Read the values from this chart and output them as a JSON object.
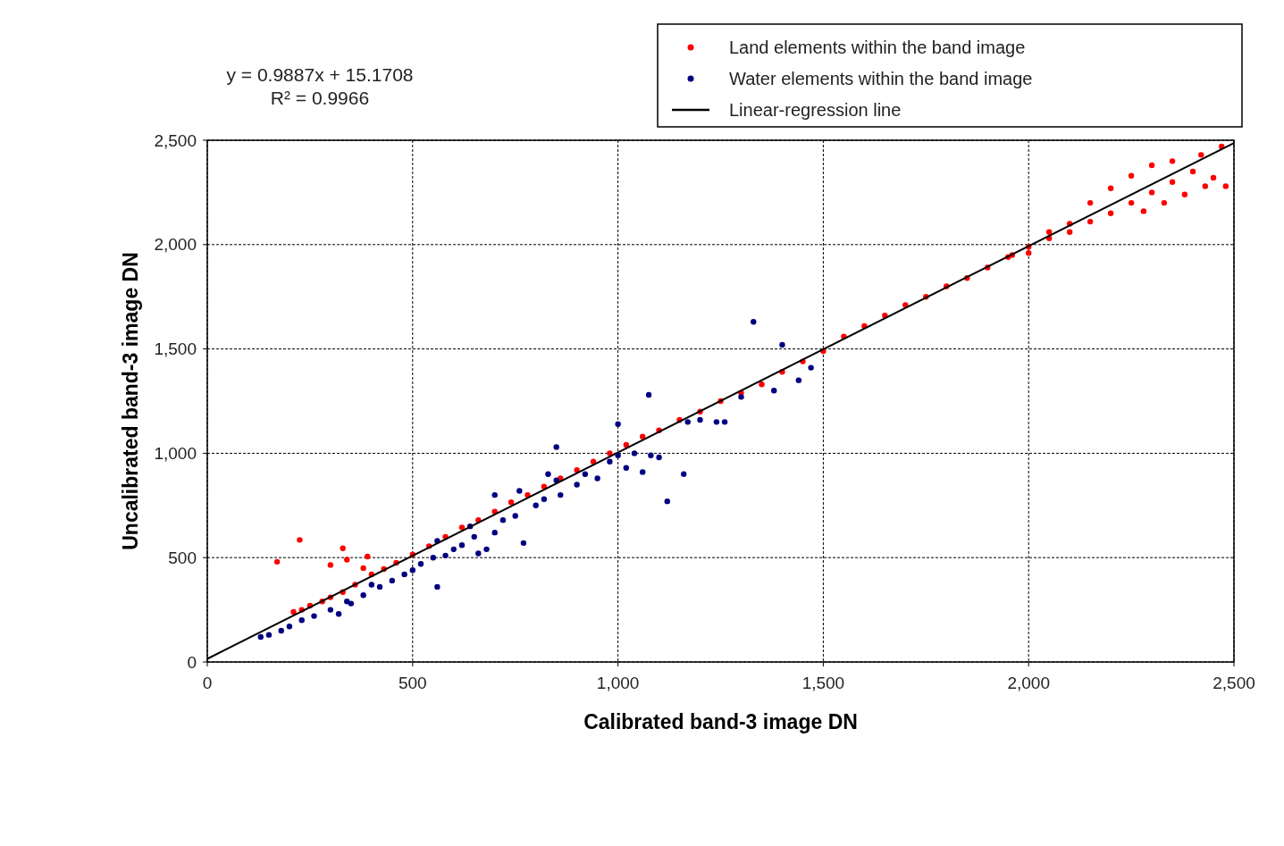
{
  "chart_data": {
    "type": "scatter",
    "xlabel": "Calibrated band-3 image DN",
    "ylabel": "Uncalibrated band-3 image DN",
    "xlim": [
      0,
      2500
    ],
    "ylim": [
      0,
      2500
    ],
    "xticks": [
      0,
      {
        "value": 500,
        "label": "500"
      },
      {
        "value": 1000,
        "label": "1,000"
      },
      {
        "value": 1500,
        "label": "1,500"
      },
      {
        "value": 2000,
        "label": "2,000"
      },
      {
        "value": 2500,
        "label": "2,500"
      }
    ],
    "yticks": [
      0,
      {
        "value": 500,
        "label": "500"
      },
      {
        "value": 1000,
        "label": "1,000"
      },
      {
        "value": 1500,
        "label": "1,500"
      },
      {
        "value": 2000,
        "label": "2,000"
      },
      {
        "value": 2500,
        "label": "2,500"
      }
    ],
    "grid": true,
    "legend": "top right",
    "marker": "circle",
    "annotations": [
      "y = 0.9887x + 15.1708",
      "R² = 0.9966"
    ],
    "series": [
      {
        "name": "Land elements within the band image",
        "color": "#ff0000",
        "x": [
          170,
          225,
          300,
          330,
          340,
          390,
          380,
          210,
          230,
          250,
          280,
          300,
          330,
          360,
          400,
          430,
          460,
          500,
          540,
          580,
          620,
          660,
          700,
          740,
          780,
          820,
          860,
          900,
          940,
          980,
          1020,
          1060,
          1100,
          1150,
          1200,
          1250,
          1300,
          1350,
          1400,
          1450,
          1500,
          1550,
          1600,
          1650,
          1700,
          1750,
          1800,
          1850,
          1900,
          1950,
          2000,
          2050,
          2100,
          2150,
          2200,
          2250,
          2300,
          2350,
          2400,
          2450,
          2480,
          2430,
          2380,
          2330,
          2280,
          2250,
          2300,
          2350,
          2420,
          2470,
          2200,
          2150,
          2100,
          2050,
          2000,
          1960
        ],
        "values": [
          480,
          585,
          465,
          545,
          490,
          505,
          450,
          240,
          250,
          270,
          290,
          310,
          335,
          370,
          420,
          445,
          475,
          515,
          555,
          600,
          645,
          680,
          720,
          765,
          800,
          840,
          880,
          920,
          960,
          1000,
          1040,
          1080,
          1110,
          1160,
          1200,
          1250,
          1290,
          1330,
          1390,
          1440,
          1490,
          1560,
          1610,
          1660,
          1710,
          1750,
          1800,
          1840,
          1890,
          1940,
          1990,
          2030,
          2060,
          2110,
          2150,
          2200,
          2250,
          2300,
          2350,
          2320,
          2280,
          2280,
          2240,
          2200,
          2160,
          2330,
          2380,
          2400,
          2430,
          2470,
          2270,
          2200,
          2100,
          2060,
          1960,
          1950
        ]
      },
      {
        "name": "Water elements within the band image",
        "color": "#000080",
        "x": [
          130,
          150,
          180,
          200,
          230,
          260,
          300,
          320,
          340,
          380,
          420,
          450,
          480,
          500,
          520,
          550,
          560,
          580,
          600,
          620,
          650,
          680,
          700,
          720,
          750,
          770,
          800,
          820,
          830,
          850,
          860,
          900,
          920,
          950,
          980,
          1000,
          1020,
          1040,
          1060,
          1080,
          1100,
          1075,
          1120,
          1160,
          1170,
          1200,
          1240,
          1260,
          1300,
          1330,
          1380,
          1400,
          1440,
          1470,
          1000,
          850,
          700,
          660,
          760,
          560,
          640,
          400,
          350
        ],
        "values": [
          120,
          130,
          150,
          170,
          200,
          220,
          250,
          230,
          290,
          320,
          360,
          390,
          420,
          440,
          470,
          500,
          360,
          510,
          540,
          560,
          600,
          540,
          620,
          680,
          700,
          570,
          750,
          780,
          900,
          1030,
          800,
          850,
          900,
          880,
          960,
          990,
          930,
          1000,
          910,
          990,
          980,
          1280,
          770,
          900,
          1150,
          1160,
          1150,
          1150,
          1270,
          1630,
          1300,
          1520,
          1350,
          1410,
          1140,
          870,
          800,
          520,
          820,
          580,
          650,
          370,
          280
        ]
      },
      {
        "name": "Linear-regression line",
        "type": "line",
        "color": "#000000",
        "line_style": "solid",
        "marker": "none",
        "x": [
          0,
          2500
        ],
        "values": [
          15,
          2487
        ]
      }
    ]
  }
}
